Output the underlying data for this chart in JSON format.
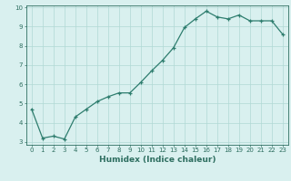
{
  "x": [
    0,
    1,
    2,
    3,
    4,
    5,
    6,
    7,
    8,
    9,
    10,
    11,
    12,
    13,
    14,
    15,
    16,
    17,
    18,
    19,
    20,
    21,
    22,
    23
  ],
  "y": [
    4.7,
    3.2,
    3.3,
    3.15,
    4.3,
    4.7,
    5.1,
    5.35,
    5.55,
    5.55,
    6.1,
    6.7,
    7.25,
    7.9,
    8.95,
    9.4,
    9.8,
    9.5,
    9.4,
    9.6,
    9.3,
    9.3,
    9.3,
    8.6
  ],
  "xlabel": "Humidex (Indice chaleur)",
  "line_color": "#2e7d6e",
  "marker": "+",
  "bg_color": "#d9f0ef",
  "grid_color": "#b0d8d4",
  "tick_color": "#2e6e60",
  "label_color": "#2e6e60",
  "xlim": [
    -0.5,
    23.5
  ],
  "ylim": [
    2.85,
    10.1
  ],
  "yticks": [
    3,
    4,
    5,
    6,
    7,
    8,
    9,
    10
  ],
  "xticks": [
    0,
    1,
    2,
    3,
    4,
    5,
    6,
    7,
    8,
    9,
    10,
    11,
    12,
    13,
    14,
    15,
    16,
    17,
    18,
    19,
    20,
    21,
    22,
    23
  ],
  "tick_fontsize": 5.0,
  "xlabel_fontsize": 6.5
}
